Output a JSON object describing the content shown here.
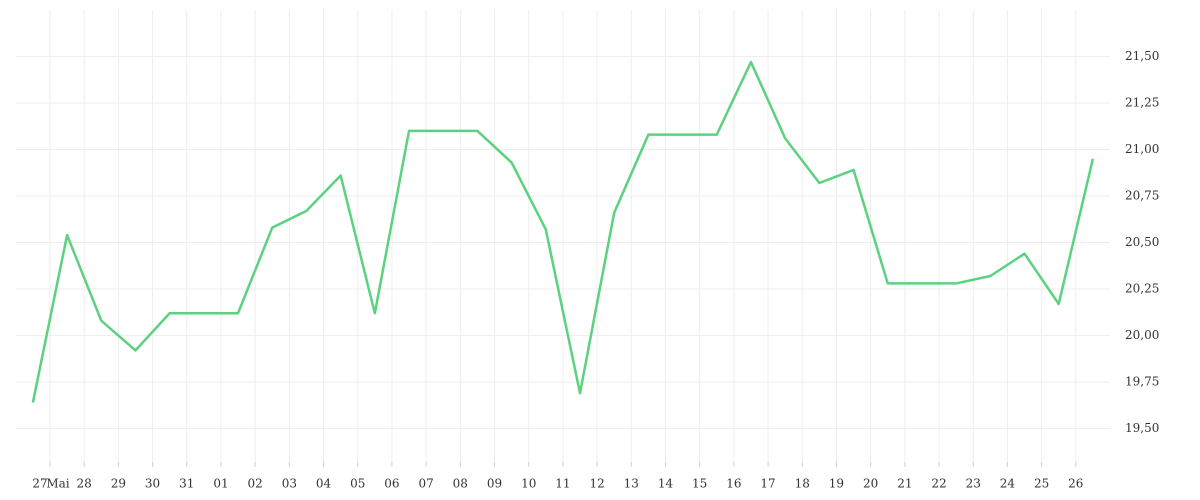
{
  "chart_data": {
    "type": "line",
    "x": [
      -0.5,
      0.5,
      1.5,
      2.5,
      3.5,
      4.5,
      5.5,
      6.5,
      7.5,
      8.5,
      9.5,
      10.5,
      11.5,
      12.5,
      13.5,
      14.5,
      15.5,
      16.5,
      17.5,
      18.5,
      19.5,
      20.5,
      21.5,
      22.5,
      23.5,
      24.5,
      25.5,
      26.5,
      27.5,
      28.5,
      29.5,
      30.5
    ],
    "series": [
      {
        "color": "#5ad27f",
        "values": [
          19.64,
          20.54,
          20.08,
          19.92,
          20.12,
          20.12,
          20.12,
          20.58,
          20.67,
          20.86,
          20.12,
          21.1,
          21.1,
          21.1,
          20.93,
          20.57,
          19.69,
          20.66,
          21.08,
          21.08,
          21.08,
          21.47,
          21.06,
          20.82,
          20.89,
          20.28,
          20.28,
          20.28,
          20.32,
          20.44,
          20.17,
          20.95
        ]
      }
    ],
    "month_label": "Mai",
    "xlim": [
      -1,
      31
    ],
    "xticks": [
      {
        "value": 0,
        "label": "27"
      },
      {
        "value": 1,
        "label": "28"
      },
      {
        "value": 2,
        "label": "29"
      },
      {
        "value": 3,
        "label": "30"
      },
      {
        "value": 4,
        "label": "31"
      },
      {
        "value": 5,
        "label": "01"
      },
      {
        "value": 6,
        "label": "02"
      },
      {
        "value": 7,
        "label": "03"
      },
      {
        "value": 8,
        "label": "04"
      },
      {
        "value": 9,
        "label": "05"
      },
      {
        "value": 10,
        "label": "06"
      },
      {
        "value": 11,
        "label": "07"
      },
      {
        "value": 12,
        "label": "08"
      },
      {
        "value": 13,
        "label": "09"
      },
      {
        "value": 14,
        "label": "10"
      },
      {
        "value": 15,
        "label": "11"
      },
      {
        "value": 16,
        "label": "12"
      },
      {
        "value": 17,
        "label": "13"
      },
      {
        "value": 18,
        "label": "14"
      },
      {
        "value": 19,
        "label": "15"
      },
      {
        "value": 20,
        "label": "16"
      },
      {
        "value": 21,
        "label": "17"
      },
      {
        "value": 22,
        "label": "18"
      },
      {
        "value": 23,
        "label": "19"
      },
      {
        "value": 24,
        "label": "20"
      },
      {
        "value": 25,
        "label": "21"
      },
      {
        "value": 26,
        "label": "22"
      },
      {
        "value": 27,
        "label": "23"
      },
      {
        "value": 28,
        "label": "24"
      },
      {
        "value": 29,
        "label": "25"
      },
      {
        "value": 30,
        "label": "26"
      }
    ],
    "ylim": [
      19.32,
      21.75
    ],
    "yticks": [
      {
        "value": 19.5,
        "label": "19,50"
      },
      {
        "value": 19.75,
        "label": "19,75"
      },
      {
        "value": 20,
        "label": "20,00"
      },
      {
        "value": 20.25,
        "label": "20,25"
      },
      {
        "value": 20.5,
        "label": "20,50"
      },
      {
        "value": 20.75,
        "label": "20,75"
      },
      {
        "value": 21,
        "label": "21,00"
      },
      {
        "value": 21.25,
        "label": "21,25"
      },
      {
        "value": 21.5,
        "label": "21,50"
      }
    ],
    "grid": true
  }
}
